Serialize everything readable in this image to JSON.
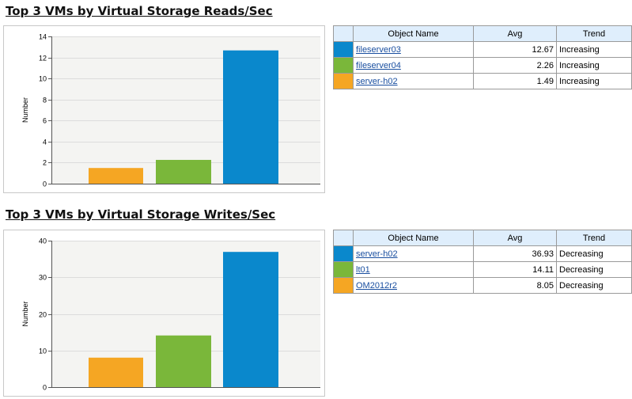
{
  "sections": [
    {
      "title": "Top 3 VMs by Virtual Storage Reads/Sec",
      "table": {
        "headers": [
          "Object Name",
          "Avg",
          "Trend"
        ],
        "rows": [
          {
            "name": "fileserver03",
            "avg": "12.67",
            "trend": "Increasing",
            "color": "#0a88cc"
          },
          {
            "name": "fileserver04",
            "avg": "2.26",
            "trend": "Increasing",
            "color": "#7ab73a"
          },
          {
            "name": "server-h02",
            "avg": "1.49",
            "trend": "Increasing",
            "color": "#f5a623"
          }
        ]
      }
    },
    {
      "title": "Top 3 VMs by Virtual Storage Writes/Sec",
      "table": {
        "headers": [
          "Object Name",
          "Avg",
          "Trend"
        ],
        "rows": [
          {
            "name": "server-h02",
            "avg": "36.93",
            "trend": "Decreasing",
            "color": "#0a88cc"
          },
          {
            "name": "lt01",
            "avg": "14.11",
            "trend": "Decreasing",
            "color": "#7ab73a"
          },
          {
            "name": "OM2012r2",
            "avg": "8.05",
            "trend": "Decreasing",
            "color": "#f5a623"
          }
        ]
      }
    }
  ],
  "chart_data": [
    {
      "type": "bar",
      "ylabel": "Number",
      "ylim": [
        0,
        14
      ],
      "yticks": [
        0,
        2,
        4,
        6,
        8,
        10,
        12,
        14
      ],
      "grid": true,
      "bars": [
        {
          "value": 1.49,
          "color": "#f5a623"
        },
        {
          "value": 2.26,
          "color": "#7ab73a"
        },
        {
          "value": 12.67,
          "color": "#0a88cc"
        }
      ]
    },
    {
      "type": "bar",
      "ylabel": "Number",
      "ylim": [
        0,
        40
      ],
      "yticks": [
        0,
        10,
        20,
        30,
        40
      ],
      "grid": true,
      "bars": [
        {
          "value": 8.05,
          "color": "#f5a623"
        },
        {
          "value": 14.11,
          "color": "#7ab73a"
        },
        {
          "value": 36.93,
          "color": "#0a88cc"
        }
      ]
    }
  ]
}
